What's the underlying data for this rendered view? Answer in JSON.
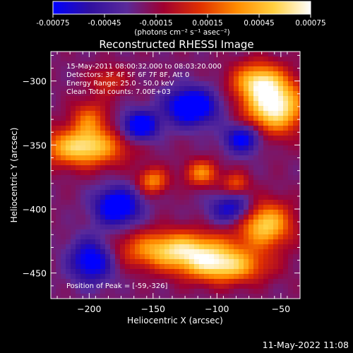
{
  "chart_data": {
    "type": "heatmap",
    "title": "Reconstructed RHESSI Image",
    "xlabel": "Heliocentric X (arcsec)",
    "ylabel": "Heliocentric Y (arcsec)",
    "xlim": [
      -230,
      -35
    ],
    "ylim": [
      -470,
      -277
    ],
    "x_ticks": [
      -200,
      -150,
      -100,
      -50
    ],
    "y_ticks": [
      -300,
      -350,
      -400,
      -450
    ],
    "x_tick_labels": [
      "−200",
      "−150",
      "−100",
      "−50"
    ],
    "y_tick_labels": [
      "−300",
      "−350",
      "−400",
      "−450"
    ],
    "colorbar": {
      "range": [
        -0.00075,
        0.00075
      ],
      "ticks": [
        -0.00075,
        -0.00045,
        -0.00015,
        0.00015,
        0.00045,
        0.00075
      ],
      "tick_labels": [
        "-0.00075",
        "-0.00045",
        "-0.00015",
        "0.00015",
        "0.00045",
        "0.00075"
      ],
      "unit_label": "(photons cm⁻² s⁻¹ asec⁻²)",
      "colors": [
        "#0000ff",
        "#3010a0",
        "#5a2a9a",
        "#a00030",
        "#e03000",
        "#ff8c00",
        "#ffd040",
        "#ffffff"
      ]
    },
    "annotations": [
      "15-May-2011 08:00:32.000 to 08:03:20.000",
      "Detectors: 3F 4F 5F 6F 7F 8F, Att 0",
      "Energy Range: 25.0 - 50.0 keV",
      "Clean    Total counts: 7.00E+03"
    ],
    "peak_label": "Position of Peak = [-59,-326]",
    "blobs": [
      {
        "x": -55,
        "y": -320,
        "sx": 16,
        "sy": 14,
        "a": 1.0
      },
      {
        "x": -68,
        "y": -300,
        "sx": 14,
        "sy": 10,
        "a": 0.7
      },
      {
        "x": -205,
        "y": -352,
        "sx": 22,
        "sy": 10,
        "a": 0.85
      },
      {
        "x": -200,
        "y": -330,
        "sx": 10,
        "sy": 10,
        "a": 0.45
      },
      {
        "x": -130,
        "y": -432,
        "sx": 30,
        "sy": 10,
        "a": 0.85
      },
      {
        "x": -95,
        "y": -445,
        "sx": 22,
        "sy": 9,
        "a": 0.75
      },
      {
        "x": -62,
        "y": -412,
        "sx": 14,
        "sy": 12,
        "a": 0.8
      },
      {
        "x": -150,
        "y": -378,
        "sx": 8,
        "sy": 7,
        "a": 0.55
      },
      {
        "x": -112,
        "y": -372,
        "sx": 9,
        "sy": 7,
        "a": 0.55
      },
      {
        "x": -85,
        "y": -380,
        "sx": 7,
        "sy": 6,
        "a": 0.4
      },
      {
        "x": -185,
        "y": -300,
        "sx": 10,
        "sy": 8,
        "a": 0.3
      },
      {
        "x": -120,
        "y": -320,
        "sx": 14,
        "sy": 10,
        "a": -0.8
      },
      {
        "x": -160,
        "y": -335,
        "sx": 10,
        "sy": 8,
        "a": -0.7
      },
      {
        "x": -178,
        "y": -398,
        "sx": 12,
        "sy": 10,
        "a": -0.75
      },
      {
        "x": -198,
        "y": -440,
        "sx": 12,
        "sy": 12,
        "a": -0.65
      },
      {
        "x": -88,
        "y": -400,
        "sx": 12,
        "sy": 8,
        "a": -0.5
      },
      {
        "x": -80,
        "y": -345,
        "sx": 10,
        "sy": 8,
        "a": -0.6
      }
    ]
  },
  "timestamp": "11-May-2022 11:08"
}
